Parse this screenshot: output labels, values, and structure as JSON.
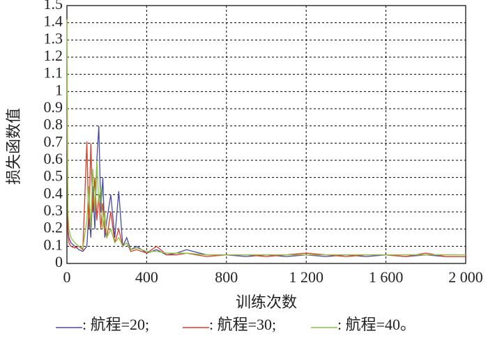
{
  "chart_data": {
    "type": "line",
    "x_label": "训练次数",
    "y_label": "损失函数值",
    "x": [
      0,
      5,
      10,
      20,
      40,
      60,
      80,
      100,
      110,
      120,
      130,
      140,
      150,
      160,
      170,
      180,
      190,
      200,
      220,
      240,
      260,
      280,
      300,
      320,
      350,
      400,
      450,
      500,
      550,
      600,
      700,
      800,
      900,
      1000,
      1100,
      1200,
      1300,
      1400,
      1500,
      1600,
      1700,
      1800,
      1900,
      2000
    ],
    "series": [
      {
        "name": ": 航程=20;",
        "color": "#4848a8",
        "values": [
          0.9,
          0.2,
          0.15,
          0.12,
          0.1,
          0.08,
          0.07,
          0.1,
          0.3,
          0.15,
          0.45,
          0.2,
          0.6,
          0.8,
          0.3,
          0.5,
          0.15,
          0.25,
          0.4,
          0.15,
          0.42,
          0.1,
          0.15,
          0.08,
          0.1,
          0.06,
          0.08,
          0.05,
          0.06,
          0.08,
          0.05,
          0.05,
          0.04,
          0.05,
          0.04,
          0.05,
          0.04,
          0.05,
          0.04,
          0.05,
          0.04,
          0.05,
          0.04,
          0.04
        ]
      },
      {
        "name": ": 航程=30;",
        "color": "#e03a22",
        "values": [
          1.1,
          0.18,
          0.12,
          0.1,
          0.09,
          0.1,
          0.08,
          0.71,
          0.2,
          0.7,
          0.3,
          0.5,
          0.25,
          0.4,
          0.2,
          0.35,
          0.2,
          0.15,
          0.3,
          0.12,
          0.2,
          0.1,
          0.12,
          0.07,
          0.08,
          0.06,
          0.1,
          0.05,
          0.05,
          0.06,
          0.04,
          0.05,
          0.05,
          0.04,
          0.05,
          0.06,
          0.05,
          0.04,
          0.05,
          0.05,
          0.04,
          0.06,
          0.04,
          0.04
        ]
      },
      {
        "name": ": 航程=40。",
        "color": "#86c43c",
        "values": [
          1.42,
          0.3,
          0.2,
          0.15,
          0.12,
          0.1,
          0.09,
          0.25,
          0.45,
          0.2,
          0.55,
          0.3,
          0.6,
          0.35,
          0.45,
          0.2,
          0.3,
          0.15,
          0.2,
          0.12,
          0.15,
          0.1,
          0.12,
          0.08,
          0.09,
          0.07,
          0.07,
          0.06,
          0.06,
          0.06,
          0.05,
          0.05,
          0.05,
          0.05,
          0.05,
          0.05,
          0.05,
          0.05,
          0.05,
          0.05,
          0.05,
          0.05,
          0.05,
          0.05
        ]
      }
    ],
    "xlim": [
      0,
      2000
    ],
    "xticks": [
      0,
      400,
      800,
      {
        "value": 1200,
        "label": "1 200"
      },
      {
        "value": 1600,
        "label": "1 600"
      },
      {
        "value": 2000,
        "label": "2 000"
      }
    ],
    "ylim": [
      0,
      1.5
    ],
    "yticks": [
      0,
      0.1,
      0.2,
      0.3,
      0.4,
      0.5,
      0.6,
      0.7,
      0.8,
      0.9,
      1.0,
      1.1,
      1.2,
      1.3,
      1.4,
      1.5
    ],
    "grid": true
  }
}
